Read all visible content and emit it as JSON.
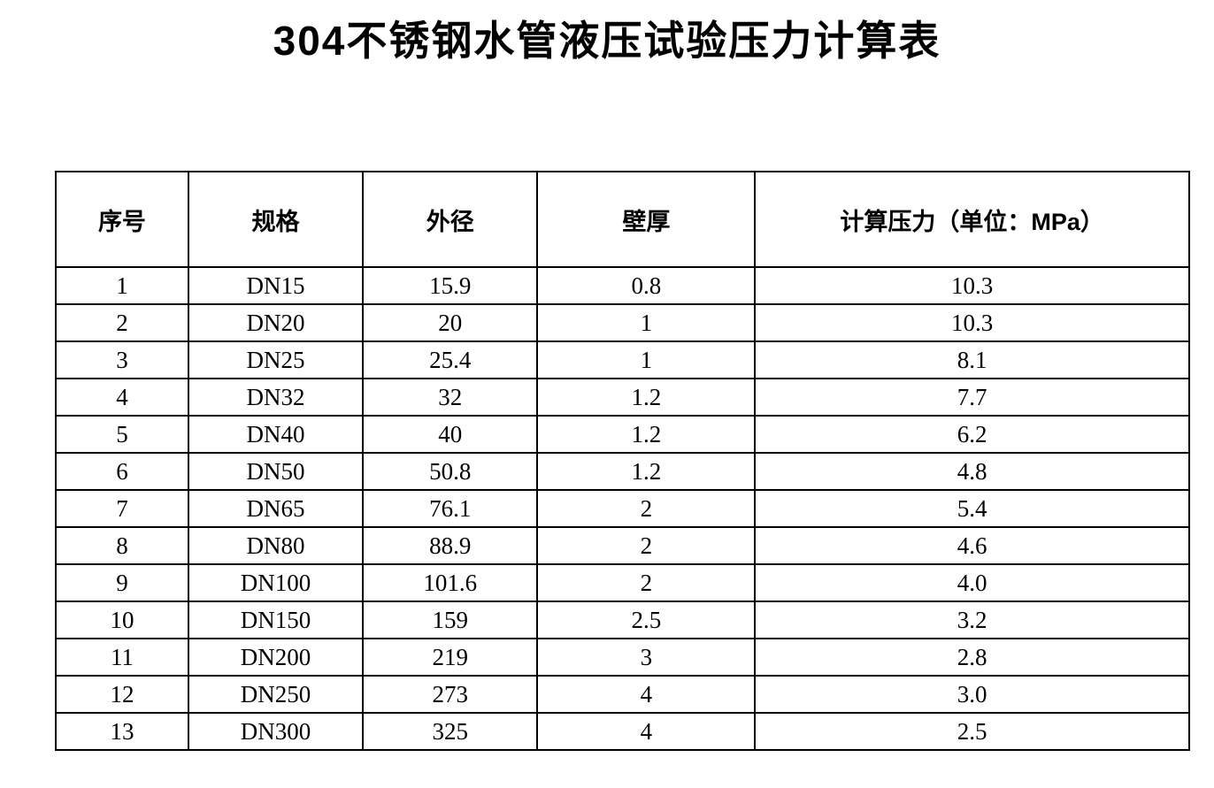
{
  "page": {
    "title": "304不锈钢水管液压试验压力计算表"
  },
  "table": {
    "headers": [
      "序号",
      "规格",
      "外径",
      "壁厚",
      "计算压力（单位：MPa）"
    ],
    "rows": [
      [
        "1",
        "DN15",
        "15.9",
        "0.8",
        "10.3"
      ],
      [
        "2",
        "DN20",
        "20",
        "1",
        "10.3"
      ],
      [
        "3",
        "DN25",
        "25.4",
        "1",
        "8.1"
      ],
      [
        "4",
        "DN32",
        "32",
        "1.2",
        "7.7"
      ],
      [
        "5",
        "DN40",
        "40",
        "1.2",
        "6.2"
      ],
      [
        "6",
        "DN50",
        "50.8",
        "1.2",
        "4.8"
      ],
      [
        "7",
        "DN65",
        "76.1",
        "2",
        "5.4"
      ],
      [
        "8",
        "DN80",
        "88.9",
        "2",
        "4.6"
      ],
      [
        "9",
        "DN100",
        "101.6",
        "2",
        "4.0"
      ],
      [
        "10",
        "DN150",
        "159",
        "2.5",
        "3.2"
      ],
      [
        "11",
        "DN200",
        "219",
        "3",
        "2.8"
      ],
      [
        "12",
        "DN250",
        "273",
        "4",
        "3.0"
      ],
      [
        "13",
        "DN300",
        "325",
        "4",
        "2.5"
      ]
    ]
  }
}
